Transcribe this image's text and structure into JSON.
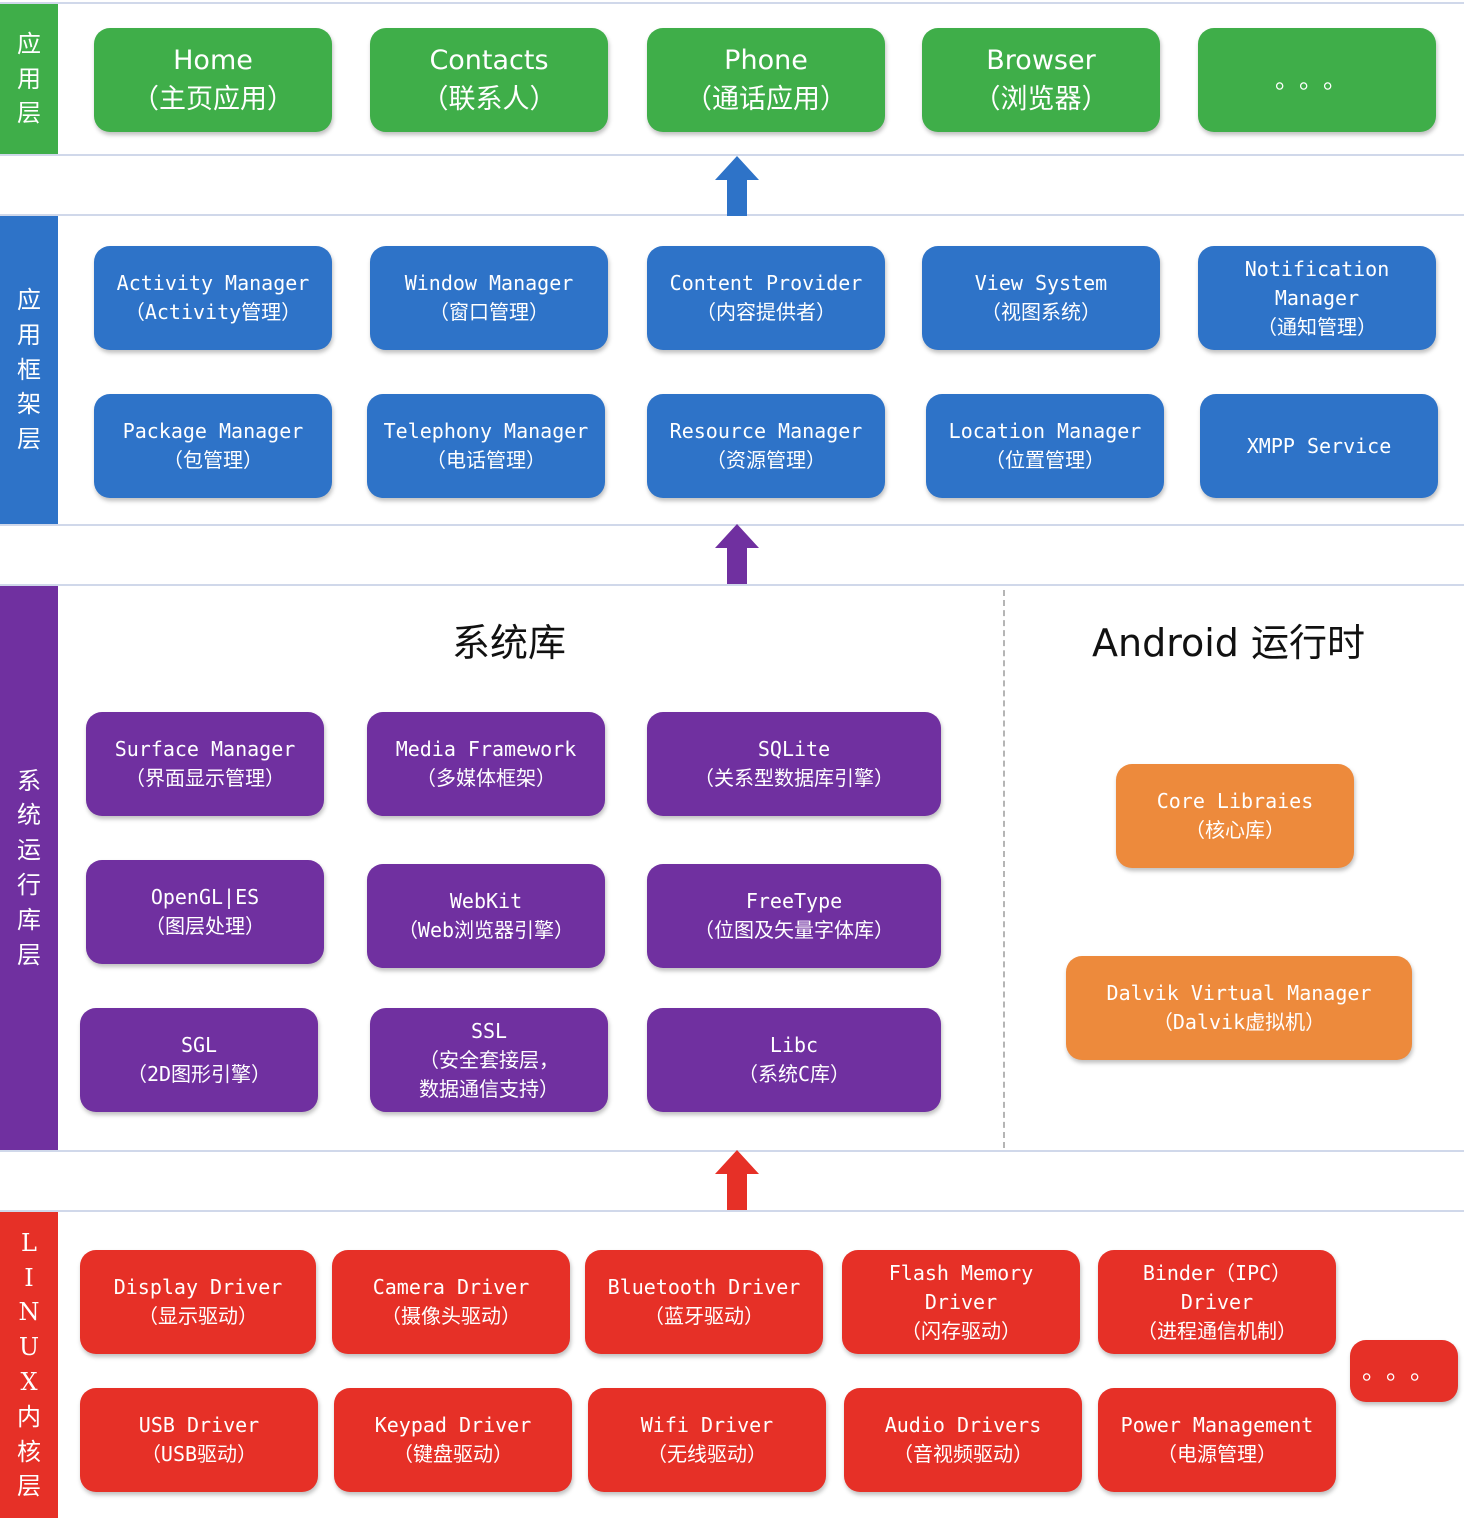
{
  "layers": {
    "application": {
      "label": [
        "应",
        "用",
        "层"
      ],
      "color": "#3fae49"
    },
    "framework": {
      "label": [
        "应",
        "用",
        "框",
        "架",
        "层"
      ],
      "color": "#2e73c8"
    },
    "runtime": {
      "label": [
        "系",
        "统",
        "运",
        "行",
        "库",
        "层"
      ],
      "color": "#7030a0"
    },
    "kernel": {
      "label": [
        "L",
        "I",
        "N",
        "U",
        "X",
        "内",
        "核",
        "层"
      ],
      "color": "#e63027"
    }
  },
  "apps": [
    [
      "Home",
      "（主页应用）"
    ],
    [
      "Contacts",
      "（联系人）"
    ],
    [
      "Phone",
      "（通话应用）"
    ],
    [
      "Browser",
      "（浏览器）"
    ],
    [
      "。。。"
    ]
  ],
  "framework": [
    [
      "Activity Manager",
      "（Activity管理）"
    ],
    [
      "Window Manager",
      "（窗口管理）"
    ],
    [
      "Content Provider",
      "（内容提供者）"
    ],
    [
      "View System",
      "（视图系统）"
    ],
    [
      "Notification",
      "Manager",
      "（通知管理）"
    ],
    [
      "Package Manager",
      "（包管理）"
    ],
    [
      "Telephony Manager",
      "（电话管理）"
    ],
    [
      "Resource Manager",
      "（资源管理）"
    ],
    [
      "Location Manager",
      "（位置管理）"
    ],
    [
      "XMPP Service"
    ]
  ],
  "libraries_title": "系统库",
  "runtime_title": "Android 运行时",
  "libraries": [
    [
      "Surface Manager",
      "（界面显示管理）"
    ],
    [
      "Media Framework",
      "（多媒体框架）"
    ],
    [
      "SQLite",
      "（关系型数据库引擎）"
    ],
    [
      "OpenGL|ES",
      "（图层处理）"
    ],
    [
      "WebKit",
      "（Web浏览器引擎）"
    ],
    [
      "FreeType",
      "（位图及矢量字体库）"
    ],
    [
      "SGL",
      "（2D图形引擎）"
    ],
    [
      "SSL",
      "（安全套接层，",
      "数据通信支持）"
    ],
    [
      "Libc",
      "（系统C库）"
    ]
  ],
  "runtime": [
    [
      "Core Libraies",
      "（核心库）"
    ],
    [
      "Dalvik Virtual Manager",
      "（Dalvik虚拟机）"
    ]
  ],
  "drivers": [
    [
      "Display Driver",
      "（显示驱动）"
    ],
    [
      "Camera Driver",
      "（摄像头驱动）"
    ],
    [
      "Bluetooth Driver",
      "（蓝牙驱动）"
    ],
    [
      "Flash Memory",
      "Driver",
      "（闪存驱动）"
    ],
    [
      "Binder（IPC）",
      "Driver",
      "（进程通信机制）"
    ],
    [
      "USB Driver",
      "（USB驱动）"
    ],
    [
      "Keypad Driver",
      "（键盘驱动）"
    ],
    [
      "Wifi Driver",
      "（无线驱动）"
    ],
    [
      "Audio Drivers",
      "（音视频驱动）"
    ],
    [
      "Power Management",
      "（电源管理）"
    ],
    [
      "。。。"
    ]
  ]
}
